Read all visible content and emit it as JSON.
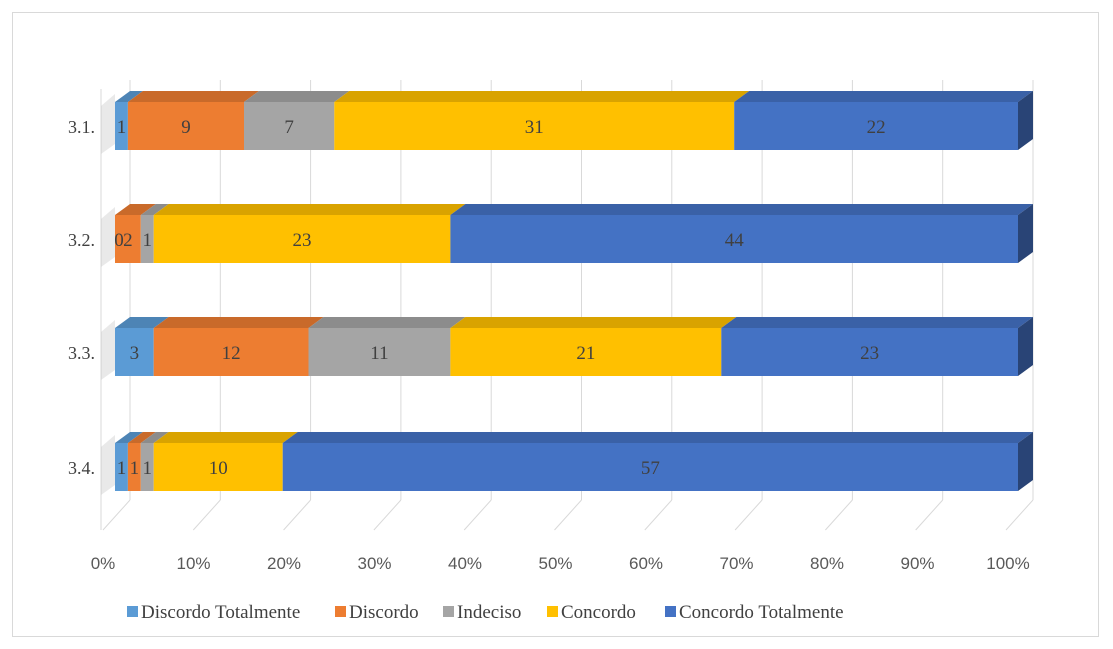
{
  "chart_data": {
    "type": "bar",
    "orientation": "horizontal",
    "stacked": "percent",
    "three_d": true,
    "categories": [
      "3.1.",
      "3.2.",
      "3.3.",
      "3.4."
    ],
    "series": [
      {
        "name": "Discordo Totalmente",
        "color": "#5b9bd5",
        "values": [
          1,
          0,
          3,
          1
        ]
      },
      {
        "name": "Discordo",
        "color": "#ed7d31",
        "values": [
          9,
          2,
          12,
          1
        ]
      },
      {
        "name": "Indeciso",
        "color": "#a5a5a5",
        "values": [
          7,
          1,
          11,
          1
        ]
      },
      {
        "name": "Concordo",
        "color": "#ffc000",
        "values": [
          31,
          23,
          21,
          10
        ]
      },
      {
        "name": "Concordo Totalmente",
        "color": "#4472c4",
        "values": [
          22,
          44,
          23,
          57
        ]
      }
    ],
    "x_ticks": [
      "0%",
      "10%",
      "20%",
      "30%",
      "40%",
      "50%",
      "60%",
      "70%",
      "80%",
      "90%",
      "100%"
    ],
    "xlim": [
      0,
      100
    ],
    "grid": true,
    "legend_position": "bottom"
  }
}
